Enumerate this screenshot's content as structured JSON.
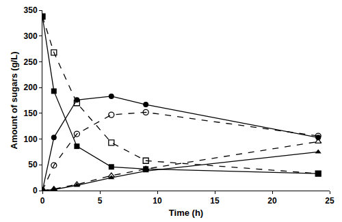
{
  "chart_data": {
    "type": "line",
    "x_label": "Time (h)",
    "y_label": "Amount of sugars (g/L)",
    "x": [
      0,
      1,
      3,
      6,
      9,
      24
    ],
    "series": [
      {
        "color": "#000000",
        "marker": "square",
        "line_style": "solid",
        "values": [
          338,
          193,
          86,
          46,
          42,
          33
        ]
      },
      {
        "color": "#000000",
        "marker": "square-open",
        "line_style": "dash",
        "values": [
          338,
          268,
          170,
          93,
          58,
          33
        ]
      },
      {
        "color": "#000000",
        "marker": "circle",
        "line_style": "solid",
        "values": [
          0,
          103,
          176,
          183,
          167,
          103
        ]
      },
      {
        "color": "#000000",
        "marker": "circle-open",
        "line_style": "dash",
        "values": [
          0,
          49,
          110,
          147,
          152,
          106
        ]
      },
      {
        "color": "#000000",
        "marker": "triangle-up",
        "line_style": "solid",
        "values": [
          0,
          2,
          10,
          25,
          38,
          75
        ]
      },
      {
        "color": "#000000",
        "marker": "triangle-up-open",
        "line_style": "dash",
        "values": [
          0,
          3,
          12,
          29,
          42,
          95
        ]
      }
    ],
    "xlim": [
      0,
      25
    ],
    "xticks": [
      0,
      5,
      10,
      15,
      20,
      25
    ],
    "ylim": [
      0,
      350
    ],
    "yticks": [
      0,
      50,
      100,
      150,
      200,
      250,
      300,
      350
    ],
    "grid": false
  }
}
